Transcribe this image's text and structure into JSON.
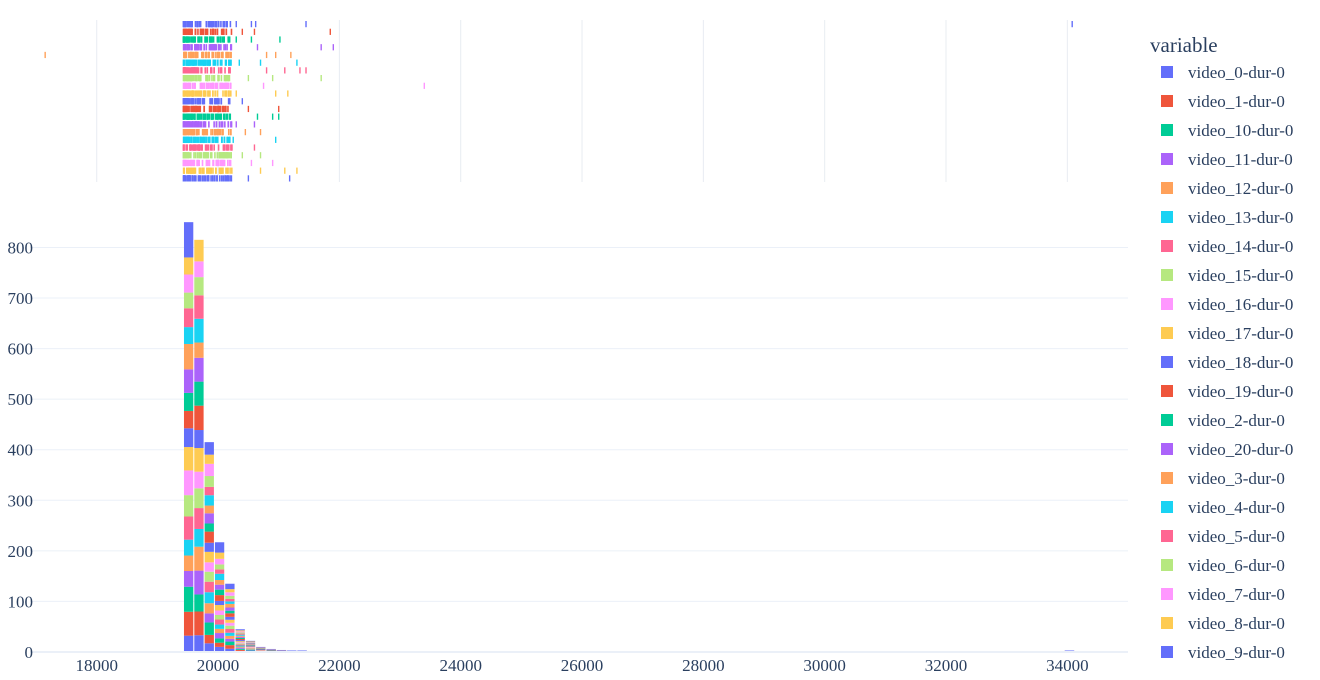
{
  "chart_data": {
    "type": "bar",
    "subtype": "stacked-histogram-with-rug",
    "xlim": [
      16900,
      35000
    ],
    "ylim": [
      0,
      880
    ],
    "x_ticks": [
      18000,
      20000,
      22000,
      24000,
      26000,
      28000,
      30000,
      32000,
      34000
    ],
    "y_ticks": [
      0,
      100,
      200,
      300,
      400,
      500,
      600,
      700,
      800
    ],
    "bin_width": 170,
    "bins": [
      {
        "x0": 19430,
        "total": 850
      },
      {
        "x0": 19600,
        "total": 815
      },
      {
        "x0": 19770,
        "total": 415
      },
      {
        "x0": 19940,
        "total": 217
      },
      {
        "x0": 20110,
        "total": 135
      },
      {
        "x0": 20280,
        "total": 45
      },
      {
        "x0": 20450,
        "total": 22
      },
      {
        "x0": 20620,
        "total": 10
      },
      {
        "x0": 20790,
        "total": 6
      },
      {
        "x0": 20960,
        "total": 4
      },
      {
        "x0": 21130,
        "total": 3
      },
      {
        "x0": 21300,
        "total": 3
      },
      {
        "x0": 21470,
        "total": 2
      },
      {
        "x0": 21640,
        "total": 2
      },
      {
        "x0": 21810,
        "total": 1
      },
      {
        "x0": 21980,
        "total": 1
      },
      {
        "x0": 16950,
        "total": 1
      },
      {
        "x0": 23300,
        "total": 1
      },
      {
        "x0": 33950,
        "total": 3
      }
    ],
    "legend": {
      "title": "variable",
      "placement": "right",
      "entries": [
        {
          "name": "video_0-dur-0",
          "color": "#636efa"
        },
        {
          "name": "video_1-dur-0",
          "color": "#EF553B"
        },
        {
          "name": "video_10-dur-0",
          "color": "#00cc96"
        },
        {
          "name": "video_11-dur-0",
          "color": "#ab63fa"
        },
        {
          "name": "video_12-dur-0",
          "color": "#FFA15A"
        },
        {
          "name": "video_13-dur-0",
          "color": "#19d3f3"
        },
        {
          "name": "video_14-dur-0",
          "color": "#FF6692"
        },
        {
          "name": "video_15-dur-0",
          "color": "#B6E880"
        },
        {
          "name": "video_16-dur-0",
          "color": "#FF97FF"
        },
        {
          "name": "video_17-dur-0",
          "color": "#FECB52"
        },
        {
          "name": "video_18-dur-0",
          "color": "#636efa"
        },
        {
          "name": "video_19-dur-0",
          "color": "#EF553B"
        },
        {
          "name": "video_2-dur-0",
          "color": "#00cc96"
        },
        {
          "name": "video_20-dur-0",
          "color": "#ab63fa"
        },
        {
          "name": "video_3-dur-0",
          "color": "#FFA15A"
        },
        {
          "name": "video_4-dur-0",
          "color": "#19d3f3"
        },
        {
          "name": "video_5-dur-0",
          "color": "#FF6692"
        },
        {
          "name": "video_6-dur-0",
          "color": "#B6E880"
        },
        {
          "name": "video_7-dur-0",
          "color": "#FF97FF"
        },
        {
          "name": "video_8-dur-0",
          "color": "#FECB52"
        },
        {
          "name": "video_9-dur-0",
          "color": "#636efa"
        }
      ]
    },
    "rug_outliers": [
      {
        "series": 0,
        "x": [
          20150,
          20300,
          20550,
          20620,
          21450,
          34080
        ]
      },
      {
        "series": 1,
        "x": [
          20400,
          20600,
          21850
        ]
      },
      {
        "series": 2,
        "x": [
          20300,
          20550,
          21020
        ]
      },
      {
        "series": 3,
        "x": [
          20650,
          21700,
          21900
        ]
      },
      {
        "series": 4,
        "x": [
          17150,
          20800,
          20950,
          21200
        ]
      },
      {
        "series": 5,
        "x": [
          20350,
          20700,
          21300
        ]
      },
      {
        "series": 6,
        "x": [
          20800,
          21100,
          21350,
          21450
        ]
      },
      {
        "series": 7,
        "x": [
          20500,
          20900,
          21700
        ]
      },
      {
        "series": 8,
        "x": [
          20200,
          20750,
          23400
        ]
      },
      {
        "series": 9,
        "x": [
          20300,
          20950,
          21150
        ]
      },
      {
        "series": 10,
        "x": [
          20050,
          20400
        ]
      },
      {
        "series": 11,
        "x": [
          20500,
          21000
        ]
      },
      {
        "series": 12,
        "x": [
          20650,
          20900,
          21000
        ]
      },
      {
        "series": 13,
        "x": [
          20300,
          20600
        ]
      },
      {
        "series": 14,
        "x": [
          20450,
          20700
        ]
      },
      {
        "series": 15,
        "x": [
          20250,
          20950
        ]
      },
      {
        "series": 16,
        "x": [
          20600
        ]
      },
      {
        "series": 17,
        "x": [
          20400,
          20700
        ]
      },
      {
        "series": 18,
        "x": [
          20550,
          20900
        ]
      },
      {
        "series": 19,
        "x": [
          20700,
          21100,
          21300
        ]
      },
      {
        "series": 20,
        "x": [
          20500,
          21180
        ]
      }
    ]
  }
}
